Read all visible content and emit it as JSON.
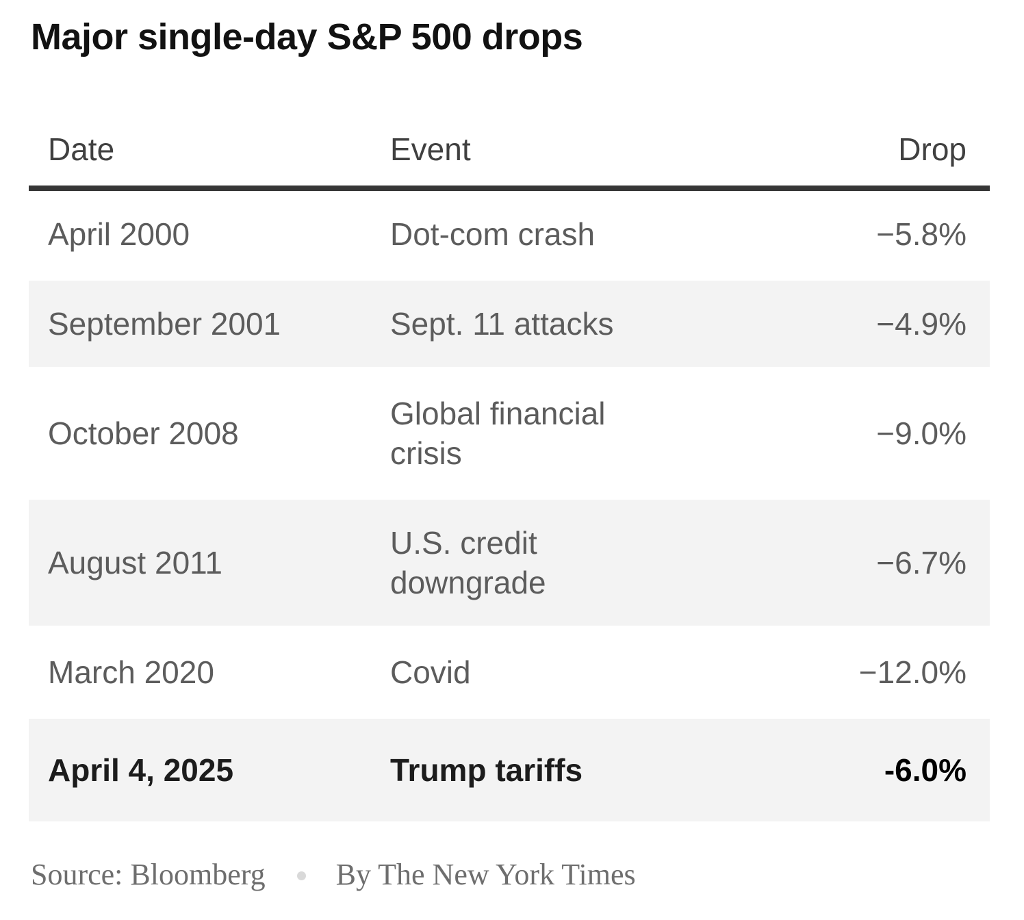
{
  "title": "Major single-day S&P 500 drops",
  "table": {
    "headers": {
      "date": "Date",
      "event": "Event",
      "drop": "Drop"
    },
    "rows": [
      {
        "date": "April 2000",
        "event": "Dot-com crash",
        "drop": "−5.8%"
      },
      {
        "date": "September 2001",
        "event": "Sept. 11 attacks",
        "drop": "−4.9%"
      },
      {
        "date": "October 2008",
        "event": "Global financial crisis",
        "drop": "−9.0%"
      },
      {
        "date": "August 2011",
        "event": "U.S. credit downgrade",
        "drop": "−6.7%"
      },
      {
        "date": "March 2020",
        "event": "Covid",
        "drop": "−12.0%"
      },
      {
        "date": "April 4, 2025",
        "event": "Trump tariffs",
        "drop": "-6.0%"
      }
    ]
  },
  "footer": {
    "source": "Source: Bloomberg",
    "separator_icon": "dot",
    "byline": "By The New York Times"
  },
  "colors": {
    "title_text": "#121212",
    "header_text": "#404040",
    "body_text": "#5c5c5c",
    "highlight_text": "#1c1c1c",
    "highlight_drop_text": "#000000",
    "header_rule": "#363636",
    "stripe_background": "#f3f3f3",
    "footer_text": "#6e6e6e",
    "dot_separator": "#d9d9d9"
  },
  "chart_data": {
    "type": "table",
    "title": "Major single-day S&P 500 drops",
    "columns": [
      "Date",
      "Event",
      "Drop"
    ],
    "rows": [
      [
        "April 2000",
        "Dot-com crash",
        "−5.8%"
      ],
      [
        "September 2001",
        "Sept. 11 attacks",
        "−4.9%"
      ],
      [
        "October 2008",
        "Global financial crisis",
        "−9.0%"
      ],
      [
        "August 2011",
        "U.S. credit downgrade",
        "−6.7%"
      ],
      [
        "March 2020",
        "Covid",
        "−12.0%"
      ],
      [
        "April 4, 2025",
        "Trump tariffs",
        "-6.0%"
      ]
    ],
    "drop_values_pct": [
      -5.8,
      -4.9,
      -9.0,
      -6.7,
      -12.0,
      -6.0
    ],
    "highlighted_row_index": 5,
    "source": "Source: Bloomberg",
    "byline": "By The New York Times",
    "layout": {
      "striped": true,
      "stripe_rows": "even",
      "drop_column_align": "right"
    }
  }
}
